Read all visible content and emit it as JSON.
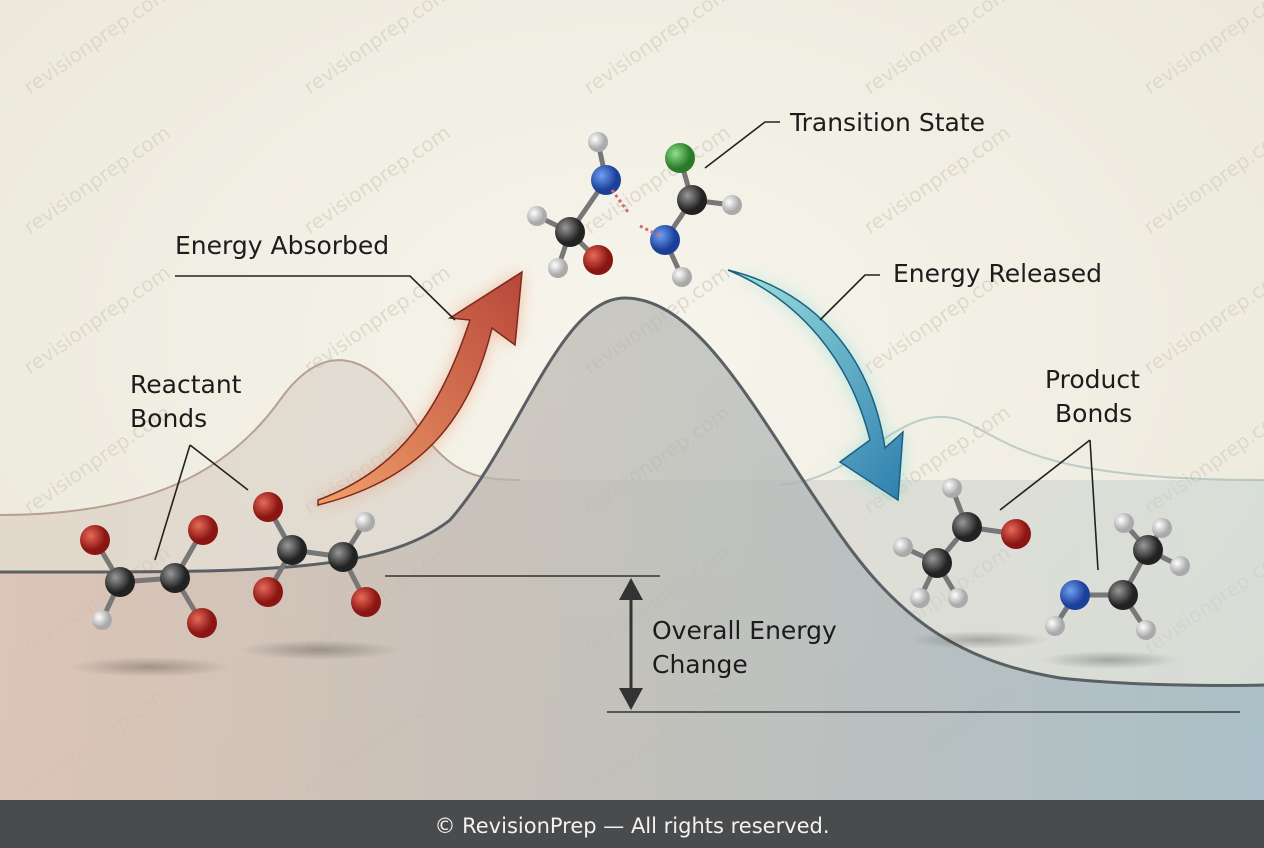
{
  "diagram": {
    "transition_state": "Transition State",
    "energy_absorbed": "Energy Absorbed",
    "energy_released": "Energy Released",
    "reactant_bonds": [
      "Reactant",
      "Bonds"
    ],
    "product_bonds": [
      "Product",
      "Bonds"
    ],
    "overall_energy_change": [
      "Overall Energy",
      "Change"
    ]
  },
  "watermark": "revisionprep.com",
  "footer": "© RevisionPrep — All rights reserved."
}
